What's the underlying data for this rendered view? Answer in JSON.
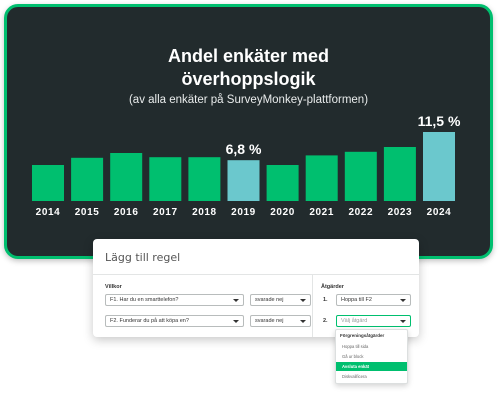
{
  "chart_data": {
    "type": "bar",
    "title": "Andel enkäter med\növerhoppslogik",
    "subtitle": "(av alla enkäter på SurveyMonkey-plattformen)",
    "categories": [
      "2014",
      "2015",
      "2016",
      "2017",
      "2018",
      "2019",
      "2020",
      "2021",
      "2022",
      "2023",
      "2024"
    ],
    "values": [
      6.0,
      7.2,
      8.0,
      7.3,
      7.3,
      6.8,
      6.0,
      7.6,
      8.2,
      9.0,
      11.5
    ],
    "highlighted": [
      "2019",
      "2024"
    ],
    "data_labels": [
      {
        "category": "2019",
        "label": "6,8 %"
      },
      {
        "category": "2024",
        "label": "11,5 %"
      }
    ],
    "ylim": [
      0,
      11.5
    ],
    "grid": false,
    "colors": {
      "bar": "#00bf6f",
      "highlight": "#6bc8cd",
      "background": "#222b2d",
      "border": "#00bf6f"
    }
  },
  "rule_card": {
    "title": "Lägg till regel",
    "conditions_label": "Villkor",
    "actions_label": "Åtgärder",
    "conditions": [
      {
        "question": "F1. Har du en smarttelefon?",
        "answer": "svarade nej"
      },
      {
        "question": "F2. Funderar du på att köpa en?",
        "answer": "svarade nej"
      }
    ],
    "actions": [
      {
        "number": "1.",
        "value": "Hoppa till F2"
      },
      {
        "number": "2.",
        "placeholder": "Välj åtgärd"
      }
    ]
  },
  "dropdown": {
    "header": "Förgreningsåtgärder",
    "items": [
      "Hoppa till sida",
      "Gå ur block",
      "Avsluta enkät",
      "Diskvalificera"
    ],
    "selected": "Avsluta enkät"
  }
}
